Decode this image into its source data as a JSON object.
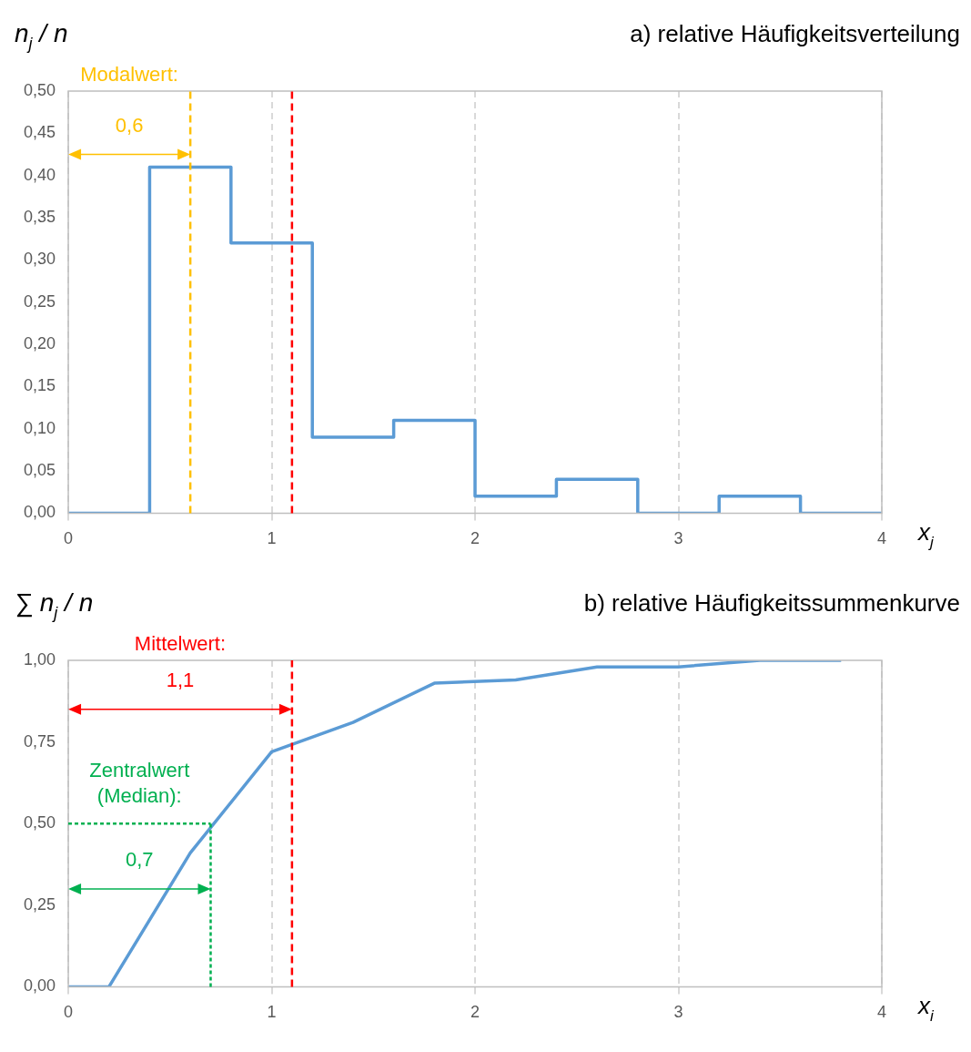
{
  "chart_data": [
    {
      "type": "step",
      "title": "a) relative Häufigkeitsverteilung",
      "xlabel": "x$_{j}$",
      "ylabel": "n$_{j}$ / n",
      "x": [
        0,
        0.4,
        0.8,
        1.2,
        1.6,
        2.0,
        2.4,
        2.8,
        3.2,
        3.6,
        4.0
      ],
      "series": [
        {
          "color": "#5b9bd5",
          "values": [
            0,
            0.41,
            0.32,
            0.09,
            0.11,
            0.02,
            0.04,
            0,
            0.02,
            0,
            0
          ]
        }
      ],
      "xlim": [
        0,
        4
      ],
      "xticks": [
        0,
        1,
        2,
        3,
        4
      ],
      "ylim": [
        0,
        0.5
      ],
      "yticks": [
        {
          "value": 0,
          "label": "0,00"
        },
        {
          "value": 0.05,
          "label": "0,05"
        },
        {
          "value": 0.1,
          "label": "0,10"
        },
        {
          "value": 0.15,
          "label": "0,15"
        },
        {
          "value": 0.2,
          "label": "0,20"
        },
        {
          "value": 0.25,
          "label": "0,25"
        },
        {
          "value": 0.3,
          "label": "0,30"
        },
        {
          "value": 0.35,
          "label": "0,35"
        },
        {
          "value": 0.4,
          "label": "0,40"
        },
        {
          "value": 0.45,
          "label": "0,45"
        },
        {
          "value": 0.5,
          "label": "0,50"
        }
      ],
      "ref_lines": [
        {
          "axis": "x",
          "value": 0.6,
          "label": "Modalwert:",
          "color": "#ffc000",
          "line_style": "dashed"
        },
        {
          "axis": "x",
          "value": 1.1,
          "color": "#ff0000",
          "line_style": "dashed"
        }
      ],
      "annotations": [
        "0,6"
      ],
      "grid": "x",
      "legend": false,
      "marker": "none",
      "line_style": "solid"
    },
    {
      "type": "line",
      "title": "b) relative Häufigkeitssummenkurve",
      "xlabel": "x$_{i}$",
      "ylabel": "∑ n$_{j}$ / n",
      "x": [
        0,
        0.2,
        0.6,
        1.0,
        1.4,
        1.8,
        2.2,
        2.6,
        3.0,
        3.4,
        3.8
      ],
      "series": [
        {
          "color": "#5b9bd5",
          "values": [
            0,
            0,
            0.41,
            0.72,
            0.81,
            0.93,
            0.94,
            0.98,
            0.98,
            1,
            1
          ]
        }
      ],
      "xlim": [
        0,
        4
      ],
      "xticks": [
        0,
        1,
        2,
        3,
        4
      ],
      "ylim": [
        0,
        1
      ],
      "yticks": [
        {
          "value": 0,
          "label": "0,00"
        },
        {
          "value": 0.25,
          "label": "0,25"
        },
        {
          "value": 0.5,
          "label": "0,50"
        },
        {
          "value": 0.75,
          "label": "0,75"
        },
        {
          "value": 1,
          "label": "1,00"
        }
      ],
      "ref_lines": [
        {
          "axis": "x",
          "value": 1.1,
          "label": "Mittelwert:",
          "color": "#ff0000",
          "line_style": "dashed"
        },
        {
          "axis": "x",
          "value": 0.7,
          "label": "Zentralwert\n(Median):",
          "color": "#00b050",
          "line_style": "dotted"
        },
        {
          "axis": "y",
          "value": 0.5,
          "color": "#00b050",
          "line_style": "dotted"
        }
      ],
      "annotations": [
        "1,1",
        "0,7"
      ],
      "grid": "x",
      "legend": false,
      "marker": "none",
      "line_style": "solid"
    }
  ]
}
